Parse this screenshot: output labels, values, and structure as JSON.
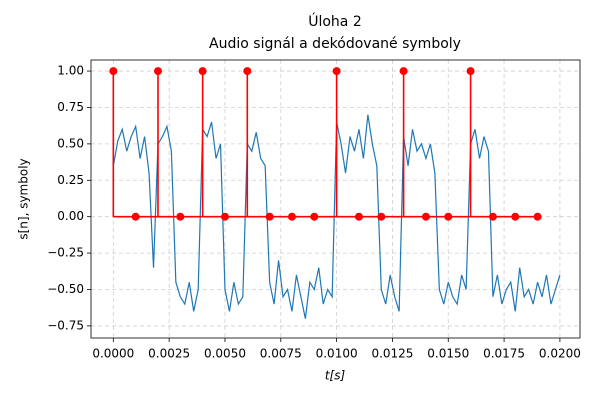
{
  "chart_data": {
    "type": "line",
    "title": "Úloha 2",
    "subtitle": "Audio signál a dekódované symboly",
    "x_label": "t[s]",
    "y_label": "s[n], symboly",
    "grid": true,
    "xlim": [
      -0.001,
      0.0209
    ],
    "ylim": [
      -0.833,
      1.076
    ],
    "xticks": [
      {
        "value": 0,
        "label": "0.0000"
      },
      {
        "value": 0.0025,
        "label": "0.0025"
      },
      {
        "value": 0.005,
        "label": "0.0050"
      },
      {
        "value": 0.0075,
        "label": "0.0075"
      },
      {
        "value": 0.01,
        "label": "0.0100"
      },
      {
        "value": 0.0125,
        "label": "0.0125"
      },
      {
        "value": 0.015,
        "label": "0.0150"
      },
      {
        "value": 0.0175,
        "label": "0.0175"
      },
      {
        "value": 0.02,
        "label": "0.0200"
      }
    ],
    "yticks": [
      {
        "value": -0.75,
        "label": "−0.75"
      },
      {
        "value": -0.5,
        "label": "−0.50"
      },
      {
        "value": -0.25,
        "label": "−0.25"
      },
      {
        "value": 0,
        "label": "0.00"
      },
      {
        "value": 0.25,
        "label": "0.25"
      },
      {
        "value": 0.5,
        "label": "0.50"
      },
      {
        "value": 0.75,
        "label": "0.75"
      },
      {
        "value": 1,
        "label": "1.00"
      }
    ],
    "series": [
      {
        "type": "line",
        "color": "#1f77b4",
        "x": [
          0,
          0.0002,
          0.0004,
          0.0006,
          0.0008,
          0.001,
          0.0012,
          0.0014,
          0.0016,
          0.0018,
          0.002,
          0.0022,
          0.0024,
          0.0026,
          0.0028,
          0.003,
          0.0032,
          0.0034,
          0.0036,
          0.0038,
          0.004,
          0.0042,
          0.0044,
          0.0046,
          0.0048,
          0.005,
          0.0052,
          0.0054,
          0.0056,
          0.0058,
          0.006,
          0.0062,
          0.0064,
          0.0066,
          0.0068,
          0.007,
          0.0072,
          0.0074,
          0.0076,
          0.0078,
          0.008,
          0.0082,
          0.0084,
          0.0086,
          0.0088,
          0.009,
          0.0092,
          0.0094,
          0.0096,
          0.0098,
          0.01,
          0.0102,
          0.0104,
          0.0106,
          0.0108,
          0.011,
          0.0112,
          0.0114,
          0.0116,
          0.0118,
          0.012,
          0.0122,
          0.0124,
          0.0126,
          0.0128,
          0.013,
          0.0132,
          0.0134,
          0.0136,
          0.0138,
          0.014,
          0.0142,
          0.0144,
          0.0146,
          0.0148,
          0.015,
          0.0152,
          0.0154,
          0.0156,
          0.0158,
          0.016,
          0.0162,
          0.0164,
          0.0166,
          0.0168,
          0.017,
          0.0172,
          0.0174,
          0.0176,
          0.0178,
          0.018,
          0.0182,
          0.0184,
          0.0186,
          0.0188,
          0.019,
          0.0192,
          0.0194,
          0.0196,
          0.0198,
          0.02
        ],
        "values": [
          0.35,
          0.52,
          0.6,
          0.45,
          0.55,
          0.62,
          0.4,
          0.55,
          0.3,
          -0.35,
          0.5,
          0.55,
          0.62,
          0.45,
          -0.45,
          -0.55,
          -0.6,
          -0.45,
          -0.65,
          -0.5,
          0.6,
          0.55,
          0.65,
          0.4,
          0.5,
          -0.5,
          -0.65,
          -0.45,
          -0.6,
          -0.55,
          0.5,
          0.45,
          0.58,
          0.4,
          0.35,
          -0.45,
          -0.6,
          -0.3,
          -0.55,
          -0.5,
          -0.65,
          -0.4,
          -0.55,
          -0.7,
          -0.45,
          -0.5,
          -0.35,
          -0.6,
          -0.5,
          -0.55,
          0.65,
          0.5,
          0.3,
          0.55,
          0.45,
          0.6,
          0.4,
          0.7,
          0.5,
          0.35,
          -0.5,
          -0.6,
          -0.4,
          -0.55,
          -0.65,
          0.55,
          0.35,
          0.6,
          0.45,
          0.5,
          0.4,
          0.5,
          0.3,
          -0.5,
          -0.6,
          -0.45,
          -0.55,
          -0.6,
          -0.4,
          -0.5,
          0.5,
          0.6,
          0.4,
          0.55,
          0.45,
          -0.55,
          -0.4,
          -0.6,
          -0.5,
          -0.45,
          -0.65,
          -0.35,
          -0.55,
          -0.5,
          -0.6,
          -0.45,
          -0.55,
          -0.4,
          -0.6,
          -0.5,
          -0.4
        ]
      },
      {
        "type": "stem",
        "color": "red",
        "x": [
          0,
          0.001,
          0.002,
          0.003,
          0.004,
          0.005,
          0.006,
          0.007,
          0.008,
          0.009,
          0.01,
          0.011,
          0.012,
          0.013,
          0.014,
          0.015,
          0.016,
          0.017,
          0.018,
          0.019
        ],
        "values": [
          1,
          0,
          1,
          0,
          1,
          0,
          1,
          0,
          0,
          0,
          1,
          0,
          0,
          1,
          0,
          0,
          1,
          0,
          0,
          0
        ]
      }
    ]
  }
}
